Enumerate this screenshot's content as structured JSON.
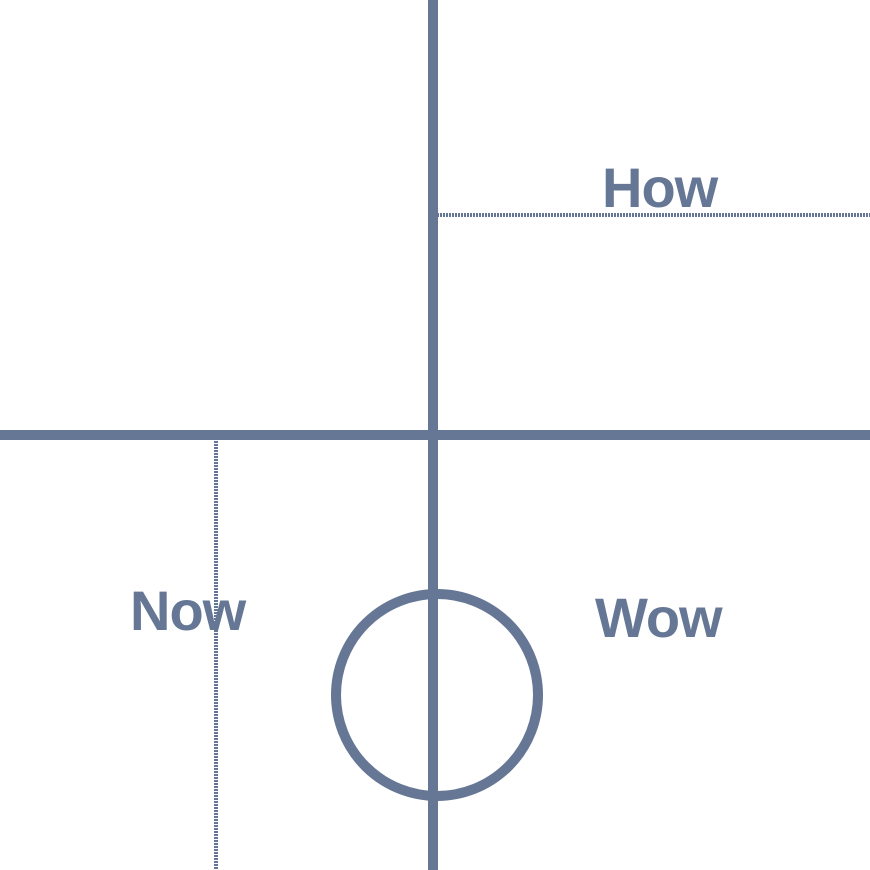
{
  "colors": {
    "background": "#ffffff",
    "stroke": "#667795"
  },
  "labels": {
    "top_right": "How",
    "bottom_left": "Now",
    "bottom_right": "Wow"
  }
}
